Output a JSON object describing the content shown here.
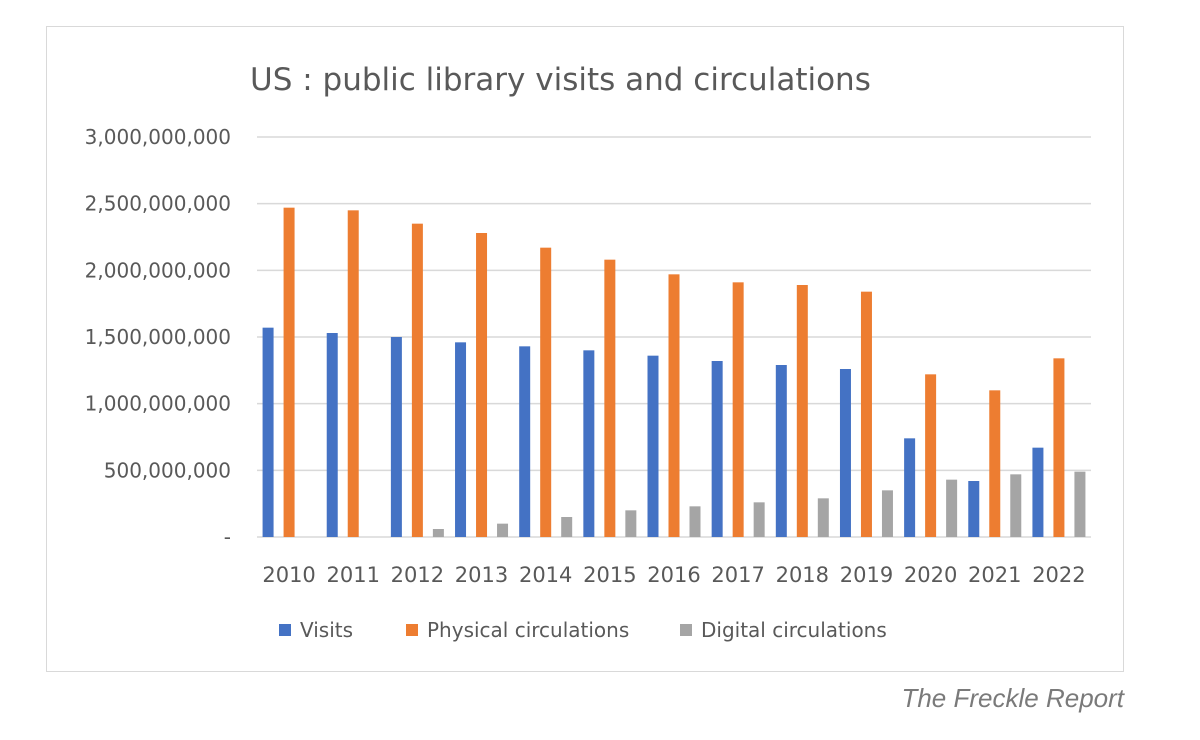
{
  "credit": "The Freckle Report",
  "chart_data": {
    "type": "bar",
    "title": "US : public library visits and circulations",
    "categories": [
      "2010",
      "2011",
      "2012",
      "2013",
      "2014",
      "2015",
      "2016",
      "2017",
      "2018",
      "2019",
      "2020",
      "2021",
      "2022"
    ],
    "series": [
      {
        "name": "Visits",
        "color": "#4472c4",
        "values": [
          1570000000,
          1530000000,
          1500000000,
          1460000000,
          1430000000,
          1400000000,
          1360000000,
          1320000000,
          1290000000,
          1260000000,
          740000000,
          420000000,
          670000000
        ]
      },
      {
        "name": "Physical circulations",
        "color": "#ed7d31",
        "values": [
          2470000000,
          2450000000,
          2350000000,
          2280000000,
          2170000000,
          2080000000,
          1970000000,
          1910000000,
          1890000000,
          1840000000,
          1220000000,
          1100000000,
          1340000000
        ]
      },
      {
        "name": "Digital circulations",
        "color": "#a5a5a5",
        "values": [
          0,
          0,
          60000000,
          100000000,
          150000000,
          200000000,
          230000000,
          260000000,
          290000000,
          350000000,
          430000000,
          470000000,
          490000000
        ]
      }
    ],
    "yticks": [
      {
        "value": 0,
        "label": "-"
      },
      {
        "value": 500000000,
        "label": "500,000,000"
      },
      {
        "value": 1000000000,
        "label": "1,000,000,000"
      },
      {
        "value": 1500000000,
        "label": "1,500,000,000"
      },
      {
        "value": 2000000000,
        "label": "2,000,000,000"
      },
      {
        "value": 2500000000,
        "label": "2,500,000,000"
      },
      {
        "value": 3000000000,
        "label": "3,000,000,000"
      }
    ],
    "ylim": [
      0,
      3000000000
    ],
    "grid": true,
    "legend": "bottom",
    "colors": {
      "grid": "#d9d9d9",
      "text": "#595959"
    }
  }
}
